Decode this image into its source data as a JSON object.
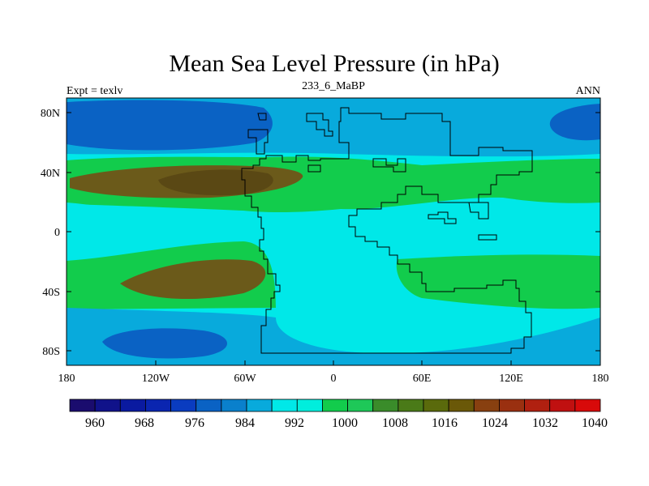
{
  "title": "Mean Sea Level Pressure (in hPa)",
  "subtitle_left": "Expt = texlv",
  "subtitle_center": "233_6_MaBP",
  "subtitle_right": "ANN",
  "lat_ticks": [
    "80N",
    "40N",
    "0",
    "40S",
    "80S"
  ],
  "lon_ticks": [
    "180",
    "120W",
    "60W",
    "0",
    "60E",
    "120E",
    "180"
  ],
  "colorbar": {
    "labels": [
      "960",
      "968",
      "976",
      "984",
      "992",
      "1000",
      "1008",
      "1016",
      "1024",
      "1032",
      "1040"
    ],
    "colors": [
      "#1a0c6e",
      "#10128a",
      "#0a1aa0",
      "#0a25b0",
      "#0a3cc0",
      "#0a62c4",
      "#0a80cc",
      "#08aadc",
      "#00e8e8",
      "#00eedd",
      "#12cc4c",
      "#1ec858",
      "#3a8c2a",
      "#4a7a18",
      "#5a6a0c",
      "#6a5808",
      "#884010",
      "#9a3010",
      "#b02010",
      "#c01010",
      "#d80a0a"
    ]
  },
  "palette": {
    "ocean_low": "#0a62c4",
    "ocean_mid": "#08aadc",
    "cyan": "#00e8e8",
    "green": "#12cc4c",
    "olive": "#6b5a1a"
  }
}
